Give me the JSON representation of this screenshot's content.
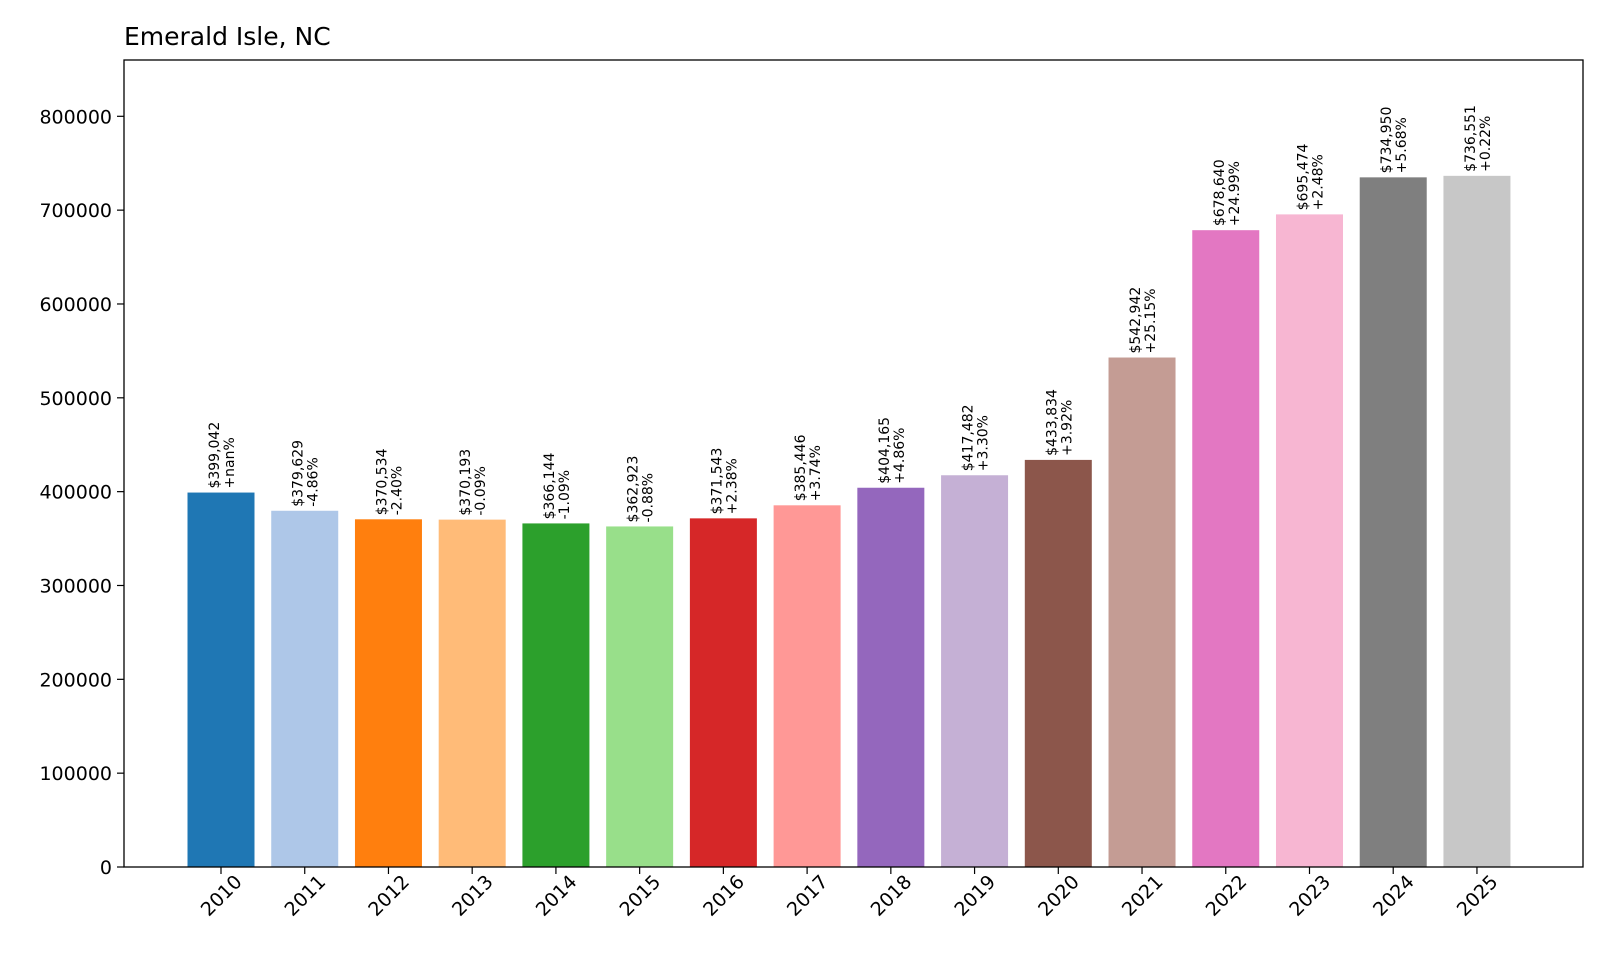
{
  "chart_data": {
    "type": "bar",
    "title": "Emerald Isle, NC",
    "xlabel": "",
    "ylabel": "",
    "ylim": [
      0,
      860000
    ],
    "yticks": [
      0,
      100000,
      200000,
      300000,
      400000,
      500000,
      600000,
      700000,
      800000
    ],
    "ytick_labels": [
      "0",
      "100000",
      "200000",
      "300000",
      "400000",
      "500000",
      "600000",
      "700000",
      "800000"
    ],
    "grid": false,
    "legend": "none",
    "categories": [
      "2010",
      "2011",
      "2012",
      "2013",
      "2014",
      "2015",
      "2016",
      "2017",
      "2018",
      "2019",
      "2020",
      "2021",
      "2022",
      "2023",
      "2024",
      "2025"
    ],
    "values": [
      399042,
      379629,
      370534,
      370193,
      366144,
      362923,
      371543,
      385446,
      404165,
      417482,
      433834,
      542942,
      678640,
      695474,
      734950,
      736551
    ],
    "value_labels": [
      "$399,042",
      "$379,629",
      "$370,534",
      "$370,193",
      "$366,144",
      "$362,923",
      "$371,543",
      "$385,446",
      "$404,165",
      "$417,482",
      "$433,834",
      "$542,942",
      "$678,640",
      "$695,474",
      "$734,950",
      "$736,551"
    ],
    "change_labels": [
      "+nan%",
      "-4.86%",
      "-2.40%",
      "-0.09%",
      "-1.09%",
      "-0.88%",
      "+2.38%",
      "+3.74%",
      "+4.86%",
      "+3.30%",
      "+3.92%",
      "+25.15%",
      "+24.99%",
      "+2.48%",
      "+5.68%",
      "+0.22%"
    ],
    "colors": [
      "#1f77b4",
      "#aec7e8",
      "#ff7f0e",
      "#ffbb78",
      "#2ca02c",
      "#98df8a",
      "#d62728",
      "#ff9896",
      "#9467bd",
      "#c5b0d5",
      "#8c564b",
      "#c49c94",
      "#e377c2",
      "#f7b6d2",
      "#7f7f7f",
      "#c7c7c7"
    ]
  }
}
